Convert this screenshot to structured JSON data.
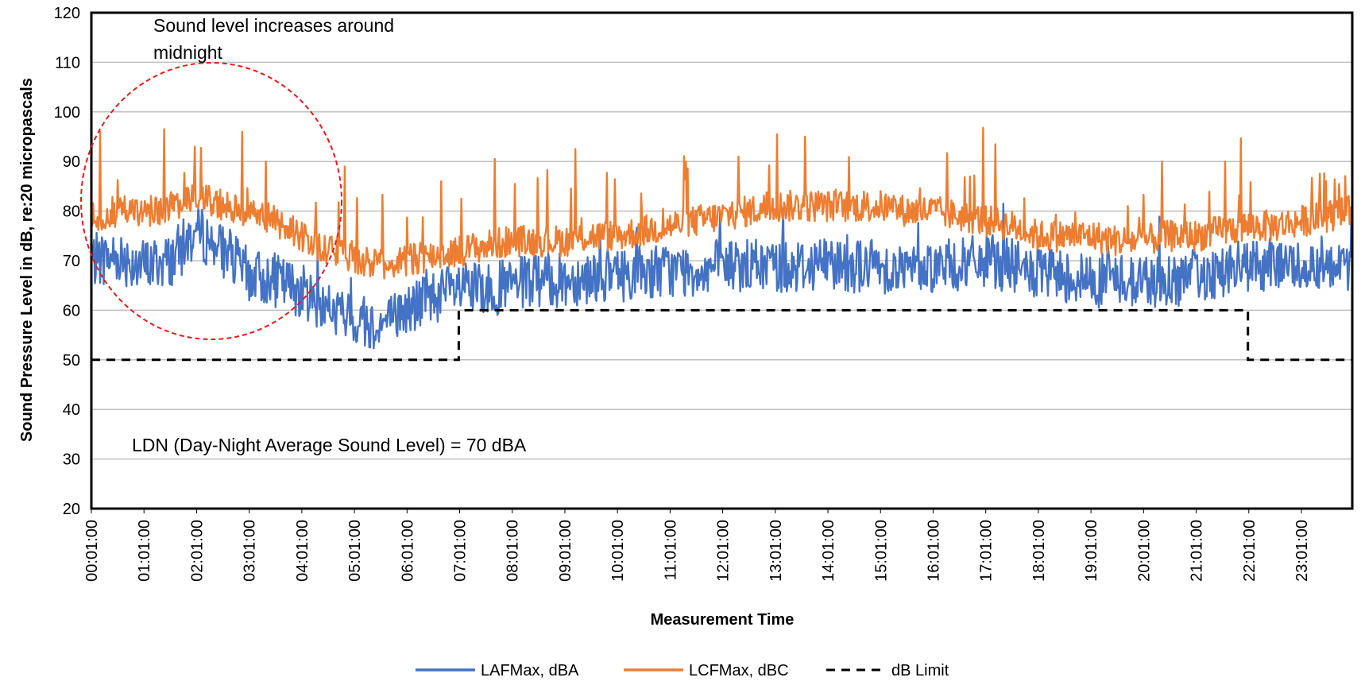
{
  "chart_data": {
    "type": "line",
    "xlabel": "Measurement Time",
    "ylabel": "Sound Pressure Level in dB, re:20 micropascals",
    "ylim": [
      20,
      120
    ],
    "yticks": [
      20,
      30,
      40,
      50,
      60,
      70,
      80,
      90,
      100,
      110,
      120
    ],
    "xlim_hours": [
      1,
      1439
    ],
    "xticks": [
      "00:01:00",
      "01:01:00",
      "02:01:00",
      "03:01:00",
      "04:01:00",
      "05:01:00",
      "06:01:00",
      "07:01:00",
      "08:01:00",
      "09:01:00",
      "10:01:00",
      "11:01:00",
      "12:01:00",
      "13:01:00",
      "14:01:00",
      "15:01:00",
      "16:01:00",
      "17:01:00",
      "18:01:00",
      "19:01:00",
      "20:01:00",
      "21:01:00",
      "22:01:00",
      "23:01:00"
    ],
    "grid": true,
    "legend_position": "bottom",
    "series": [
      {
        "name": "LAFMax, dBA",
        "color": "#4472C4",
        "style": "solid",
        "x": [
          "00:01:00",
          "00:31:00",
          "01:01:00",
          "01:31:00",
          "02:01:00",
          "02:31:00",
          "03:01:00",
          "03:31:00",
          "04:01:00",
          "04:31:00",
          "05:01:00",
          "05:31:00",
          "06:01:00",
          "06:31:00",
          "07:01:00",
          "07:31:00",
          "08:01:00",
          "08:31:00",
          "09:01:00",
          "09:31:00",
          "10:01:00",
          "10:31:00",
          "11:01:00",
          "11:31:00",
          "12:01:00",
          "12:31:00",
          "13:01:00",
          "13:31:00",
          "14:01:00",
          "14:31:00",
          "15:01:00",
          "15:31:00",
          "16:01:00",
          "16:31:00",
          "17:01:00",
          "17:31:00",
          "18:01:00",
          "18:31:00",
          "19:01:00",
          "19:31:00",
          "20:01:00",
          "20:31:00",
          "21:01:00",
          "21:31:00",
          "22:01:00",
          "22:31:00",
          "23:01:00",
          "23:31:00",
          "23:59:00"
        ],
        "y": [
          70,
          71,
          69,
          70,
          76,
          72,
          67,
          66,
          64,
          60,
          58,
          57,
          60,
          63,
          64,
          64,
          65,
          66,
          66,
          67,
          67,
          68,
          68,
          68,
          69,
          69,
          69,
          69,
          70,
          69,
          69,
          68,
          69,
          69,
          70,
          69,
          67,
          67,
          66,
          66,
          66,
          66,
          67,
          68,
          69,
          69,
          69,
          70,
          69
        ]
      },
      {
        "name": "LCFMax, dBC",
        "color": "#ED7D31",
        "style": "solid",
        "x": [
          "00:01:00",
          "00:31:00",
          "01:01:00",
          "01:31:00",
          "02:01:00",
          "02:31:00",
          "03:01:00",
          "03:31:00",
          "04:01:00",
          "04:31:00",
          "05:01:00",
          "05:31:00",
          "06:01:00",
          "06:31:00",
          "07:01:00",
          "07:31:00",
          "08:01:00",
          "08:31:00",
          "09:01:00",
          "09:31:00",
          "10:01:00",
          "10:31:00",
          "11:01:00",
          "11:31:00",
          "12:01:00",
          "12:31:00",
          "13:01:00",
          "13:31:00",
          "14:01:00",
          "14:31:00",
          "15:01:00",
          "15:31:00",
          "16:01:00",
          "16:31:00",
          "17:01:00",
          "17:31:00",
          "18:01:00",
          "18:31:00",
          "19:01:00",
          "19:31:00",
          "20:01:00",
          "20:31:00",
          "21:01:00",
          "21:31:00",
          "22:01:00",
          "22:31:00",
          "23:01:00",
          "23:31:00",
          "23:59:00"
        ],
        "y": [
          79,
          80,
          80,
          80,
          83,
          81,
          80,
          78,
          75,
          72,
          70,
          69,
          70,
          71,
          72,
          73,
          74,
          74,
          74,
          75,
          75,
          76,
          77,
          78,
          79,
          80,
          81,
          81,
          81,
          81,
          81,
          80,
          80,
          79,
          78,
          77,
          75,
          75,
          75,
          74,
          74,
          75,
          75,
          76,
          77,
          77,
          78,
          79,
          80
        ]
      },
      {
        "name": "dB Limit",
        "color": "#000000",
        "style": "dashed",
        "x": [
          "00:01:00",
          "07:00:00",
          "07:00:00",
          "22:00:00",
          "22:00:00",
          "23:59:00"
        ],
        "y": [
          50,
          50,
          60,
          60,
          50,
          50
        ]
      }
    ],
    "peaks": {
      "LCFMax, dBC": [
        {
          "x": "00:11:00",
          "y": 96
        },
        {
          "x": "01:24:00",
          "y": 96.5
        },
        {
          "x": "01:59:00",
          "y": 93
        },
        {
          "x": "02:53:00",
          "y": 96
        },
        {
          "x": "03:20:00",
          "y": 90
        },
        {
          "x": "04:50:00",
          "y": 89
        },
        {
          "x": "06:40:00",
          "y": 86
        },
        {
          "x": "07:41:00",
          "y": 90.5
        },
        {
          "x": "09:13:00",
          "y": 92.5
        },
        {
          "x": "11:19:00",
          "y": 90
        },
        {
          "x": "12:19:00",
          "y": 91
        },
        {
          "x": "13:03:00",
          "y": 95.5
        },
        {
          "x": "13:35:00",
          "y": 95
        },
        {
          "x": "16:58:00",
          "y": 96.8
        },
        {
          "x": "17:12:00",
          "y": 93.5
        },
        {
          "x": "21:52:00",
          "y": 94.7
        },
        {
          "x": "20:22:00",
          "y": 90
        },
        {
          "x": "21:34:00",
          "y": 90
        }
      ]
    },
    "annotations": [
      {
        "text": "Sound level increases around midnight",
        "x": "01:01:00",
        "y": 116
      },
      {
        "text": "LDN (Day-Night Average Sound Level) = 70 dBA",
        "x": "00:45:00",
        "y": 33
      }
    ]
  }
}
